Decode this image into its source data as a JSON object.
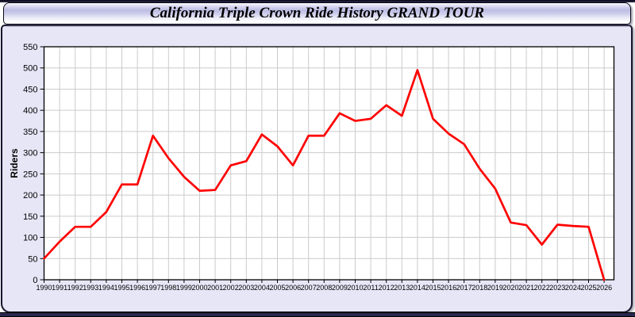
{
  "window": {
    "title": "California Triple Crown Ride History GRAND TOUR"
  },
  "colors": {
    "line": "#ff0000",
    "grid": "#cbcbcb",
    "axis": "#000000",
    "plot_bg": "#ffffff",
    "window_bg": "#e6e6f7",
    "edge_navy": "#26264d"
  },
  "chart_data": {
    "type": "line",
    "title": "California Triple Crown Ride History GRAND TOUR",
    "xlabel": "",
    "ylabel": "Riders",
    "ylim": [
      0,
      550
    ],
    "ytick_step": 50,
    "grid": true,
    "legend": false,
    "categories": [
      1990,
      1991,
      1992,
      1993,
      1994,
      1995,
      1996,
      1997,
      1998,
      1999,
      2000,
      2001,
      2002,
      2003,
      2004,
      2005,
      2006,
      2007,
      2008,
      2009,
      2010,
      2011,
      2012,
      2013,
      2014,
      2015,
      2016,
      2017,
      2018,
      2019,
      2020,
      2021,
      2022,
      2023,
      2024,
      2025,
      2026
    ],
    "values": [
      50,
      90,
      125,
      125,
      160,
      225,
      225,
      340,
      287,
      243,
      210,
      212,
      270,
      280,
      343,
      315,
      270,
      340,
      340,
      393,
      375,
      380,
      412,
      387,
      495,
      380,
      345,
      320,
      262,
      215,
      135,
      129,
      83,
      130,
      127,
      125,
      0
    ]
  }
}
